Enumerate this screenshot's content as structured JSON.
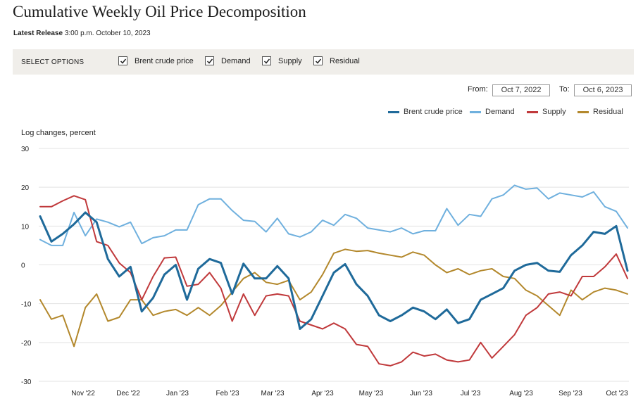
{
  "header": {
    "title": "Cumulative Weekly Oil Price Decomposition",
    "release_label": "Latest Release",
    "release_time": "3:00 p.m. October 10, 2023"
  },
  "options": {
    "label": "SELECT OPTIONS",
    "items": [
      {
        "label": "Brent crude price",
        "checked": true
      },
      {
        "label": "Demand",
        "checked": true
      },
      {
        "label": "Supply",
        "checked": true
      },
      {
        "label": "Residual",
        "checked": true
      }
    ]
  },
  "date_range": {
    "from_label": "From:",
    "from_value": "Oct 7, 2022",
    "to_label": "To:",
    "to_value": "Oct 6, 2023"
  },
  "colors": {
    "brent": "#1f6a9a",
    "demand": "#6fb0de",
    "supply": "#c0393b",
    "residual": "#b3882c"
  },
  "chart_data": {
    "type": "line",
    "title": "",
    "ylabel": "Log changes, percent",
    "ylim": [
      -30,
      30
    ],
    "yticks": [
      "30",
      "20",
      "10",
      "0",
      "-10",
      "-20",
      "-30"
    ],
    "xticks": [
      "Nov '22",
      "Dec '22",
      "Jan '23",
      "Feb '23",
      "Mar '23",
      "Apr '23",
      "May '23",
      "Jun '23",
      "Jul '23",
      "Aug '23",
      "Sep '23",
      "Oct '23"
    ],
    "series": [
      {
        "name": "Brent crude price",
        "key": "brent",
        "values": [
          12.5,
          6,
          8,
          10.5,
          13.5,
          11,
          1.5,
          -3,
          -0.5,
          -12,
          -8.5,
          -2.5,
          0,
          -9,
          -1,
          1.5,
          0.5,
          -7.5,
          0.3,
          -3.5,
          -3.5,
          -0.3,
          -3.5,
          -16.5,
          -14,
          -8,
          -2,
          0.2,
          -5,
          -8,
          -13,
          -14.5,
          -13,
          -11,
          -12,
          -14,
          -11.5,
          -15,
          -14,
          -9,
          -7.5,
          -6,
          -1.5,
          0,
          0.5,
          -1.5,
          -1.8,
          2.5,
          5,
          8.5,
          8,
          10,
          -1.5
        ]
      },
      {
        "name": "Demand",
        "key": "demand",
        "values": [
          6.5,
          5,
          5,
          13.5,
          7.5,
          11.8,
          11,
          9.8,
          11,
          5.5,
          7,
          7.5,
          9,
          9,
          15.5,
          17,
          17,
          14,
          11.5,
          11.2,
          8.5,
          12,
          8,
          7.2,
          8.5,
          11.5,
          10.2,
          13,
          12,
          9.5,
          9,
          8.5,
          9.5,
          8,
          8.8,
          8.8,
          14.5,
          10.2,
          13,
          12.5,
          17,
          18,
          20.5,
          19.5,
          19.8,
          17,
          18.5,
          18,
          17.5,
          18.8,
          15,
          13.8,
          9.5
        ]
      },
      {
        "name": "Supply",
        "key": "supply",
        "values": [
          15,
          15,
          16.5,
          17.8,
          16.8,
          6,
          5,
          0.5,
          -2,
          -9,
          -3,
          1.8,
          2,
          -5.5,
          -5,
          -2,
          -6,
          -14.5,
          -7.5,
          -13,
          -8,
          -7.5,
          -8,
          -14.5,
          -15.5,
          -16.5,
          -15,
          -16.5,
          -20.5,
          -21,
          -25.5,
          -26,
          -25,
          -22.5,
          -23.5,
          -23,
          -24.5,
          -25,
          -24.5,
          -20,
          -24,
          -21,
          -18,
          -13,
          -11,
          -7.5,
          -7,
          -8,
          -3,
          -3,
          -0.5,
          2.8,
          -3.5
        ]
      },
      {
        "name": "Residual",
        "key": "residual",
        "values": [
          -9,
          -14,
          -13,
          -21,
          -11,
          -7.5,
          -14.5,
          -13.5,
          -9,
          -9,
          -13,
          -12,
          -11.5,
          -13,
          -11,
          -13,
          -10.5,
          -7,
          -3.5,
          -2,
          -4.5,
          -5,
          -4,
          -9,
          -7,
          -2.5,
          3,
          4,
          3.5,
          3.7,
          3,
          2.5,
          2,
          3.3,
          2.5,
          0,
          -2,
          -1,
          -2.5,
          -1.5,
          -1,
          -3,
          -3.5,
          -6.5,
          -8,
          -10.5,
          -13,
          -6.5,
          -9,
          -7,
          -6,
          -6.5,
          -7.5
        ]
      }
    ]
  }
}
